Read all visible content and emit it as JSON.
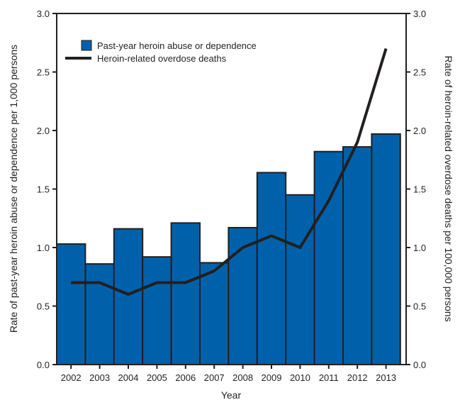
{
  "chart_data": {
    "type": "bar+line",
    "categories": [
      "2002",
      "2003",
      "2004",
      "2005",
      "2006",
      "2007",
      "2008",
      "2009",
      "2010",
      "2011",
      "2012",
      "2013"
    ],
    "series": [
      {
        "name": "Past-year heroin abuse or dependence",
        "type": "bar",
        "axis": "left",
        "color": "#0061ab",
        "values": [
          1.03,
          0.86,
          1.16,
          0.92,
          1.21,
          0.87,
          1.17,
          1.64,
          1.45,
          1.82,
          1.86,
          1.97
        ]
      },
      {
        "name": "Heroin-related overdose deaths",
        "type": "line",
        "axis": "right",
        "color": "#231f20",
        "values": [
          0.7,
          0.7,
          0.6,
          0.7,
          0.7,
          0.8,
          1.0,
          1.1,
          1.0,
          1.4,
          1.9,
          2.7
        ]
      }
    ],
    "xlabel": "Year",
    "ylabel": "Rate of past-year heroin abuse or dependence per 1,000 persons",
    "y2label": "Rate of heroin-related overdose deaths per 100,000 persons",
    "ylim": [
      0,
      3.0
    ],
    "y2lim": [
      0,
      3.0
    ],
    "yticks": [
      "0.0",
      "0.5",
      "1.0",
      "1.5",
      "2.0",
      "2.5",
      "3.0"
    ],
    "grid": false,
    "legend": "top-left"
  }
}
